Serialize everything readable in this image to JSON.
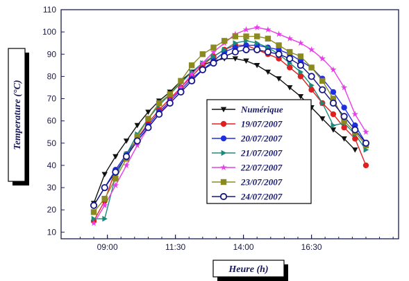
{
  "chart_data": {
    "type": "line",
    "xlabel": "Heure (h)",
    "ylabel": "Temperature (°C)",
    "xlim": [
      7.3,
      19.7
    ],
    "ylim": [
      7,
      110
    ],
    "yticks": [
      10,
      20,
      30,
      40,
      50,
      60,
      70,
      80,
      90,
      100,
      110
    ],
    "xticks": [
      {
        "value": 9.0,
        "label": "09:00"
      },
      {
        "value": 11.5,
        "label": "11:30"
      },
      {
        "value": 14.0,
        "label": "14:00"
      },
      {
        "value": 16.5,
        "label": "16:30"
      }
    ],
    "legend_position": "center-right",
    "grid": false,
    "series": [
      {
        "name": "Numérique",
        "color": "#111111",
        "marker": "triangle-down",
        "x": [
          8.5,
          8.9,
          9.3,
          9.7,
          10.1,
          10.5,
          10.9,
          11.3,
          11.7,
          12.1,
          12.5,
          12.9,
          13.3,
          13.7,
          14.1,
          14.5,
          14.9,
          15.3,
          15.7,
          16.1,
          16.5,
          16.9,
          17.3,
          17.7,
          18.1
        ],
        "y": [
          23,
          36,
          44,
          51,
          58,
          64,
          69,
          73,
          78,
          82,
          85,
          87,
          88,
          88,
          87,
          85,
          82,
          79,
          75,
          71,
          66,
          61,
          56,
          52,
          47
        ]
      },
      {
        "name": "19/07/2007",
        "color": "#e02020",
        "marker": "circle",
        "x": [
          8.5,
          8.9,
          9.3,
          9.7,
          10.1,
          10.5,
          10.9,
          11.3,
          11.7,
          12.1,
          12.5,
          12.9,
          13.3,
          13.7,
          14.1,
          14.5,
          14.9,
          15.3,
          15.7,
          16.1,
          16.5,
          16.9,
          17.3,
          17.7,
          18.1,
          18.5
        ],
        "y": [
          15,
          24,
          38,
          45,
          52,
          59,
          65,
          70,
          75,
          80,
          85,
          89,
          92,
          94,
          94,
          92,
          90,
          88,
          84,
          80,
          74,
          68,
          63,
          57,
          52,
          40
        ]
      },
      {
        "name": "20/07/2007",
        "color": "#1f2fe0",
        "marker": "circle",
        "x": [
          8.5,
          8.9,
          9.3,
          9.7,
          10.1,
          10.5,
          10.9,
          11.3,
          11.7,
          12.1,
          12.5,
          12.9,
          13.3,
          13.7,
          14.1,
          14.5,
          14.9,
          15.3,
          15.7,
          16.1,
          16.5,
          16.9,
          17.3,
          17.7,
          18.1,
          18.5
        ],
        "y": [
          22,
          30,
          38,
          45,
          52,
          58,
          64,
          69,
          74,
          79,
          83,
          87,
          91,
          93,
          94,
          94,
          93,
          92,
          90,
          87,
          84,
          79,
          73,
          66,
          58,
          50
        ]
      },
      {
        "name": "21/07/2007",
        "color": "#1a8a7a",
        "marker": "triangle-right",
        "x": [
          8.5,
          8.9,
          9.3,
          9.7,
          10.1,
          10.5,
          10.9,
          11.3,
          11.7,
          12.1,
          12.5,
          12.9,
          13.3,
          13.7,
          14.1,
          14.5,
          14.9,
          15.3,
          15.7,
          16.1,
          16.5,
          16.9,
          17.3,
          17.7,
          18.1,
          18.5
        ],
        "y": [
          16,
          16,
          35,
          45,
          54,
          61,
          67,
          72,
          77,
          82,
          86,
          89,
          92,
          95,
          96,
          95,
          93,
          90,
          86,
          82,
          76,
          68,
          58,
          59,
          54,
          47
        ]
      },
      {
        "name": "22/07/2007",
        "color": "#e83de8",
        "marker": "star",
        "x": [
          8.5,
          8.9,
          9.3,
          9.7,
          10.1,
          10.5,
          10.9,
          11.3,
          11.7,
          12.1,
          12.5,
          12.9,
          13.3,
          13.7,
          14.1,
          14.5,
          14.9,
          15.3,
          15.7,
          16.1,
          16.5,
          16.9,
          17.3,
          17.7,
          18.1,
          18.5
        ],
        "y": [
          14,
          22,
          31,
          40,
          49,
          57,
          63,
          69,
          75,
          81,
          86,
          91,
          95,
          99,
          101,
          102,
          101,
          99,
          97,
          95,
          92,
          88,
          83,
          75,
          63,
          55
        ]
      },
      {
        "name": "23/07/2007",
        "color": "#8a8a20",
        "marker": "square",
        "x": [
          8.5,
          8.9,
          9.3,
          9.7,
          10.1,
          10.5,
          10.9,
          11.3,
          11.7,
          12.1,
          12.5,
          12.9,
          13.3,
          13.7,
          14.1,
          14.5,
          14.9,
          15.3,
          15.7,
          16.1,
          16.5,
          16.9,
          17.3,
          17.7,
          18.1,
          18.5
        ],
        "y": [
          19,
          25,
          34,
          43,
          53,
          61,
          68,
          72,
          78,
          85,
          90,
          93,
          96,
          98,
          98,
          98,
          97,
          94,
          91,
          89,
          84,
          78,
          70,
          60,
          55,
          49
        ]
      },
      {
        "name": "24/07/2007",
        "color": "#151585",
        "marker": "circle-open",
        "x": [
          8.5,
          8.9,
          9.3,
          9.7,
          10.1,
          10.5,
          10.9,
          11.3,
          11.7,
          12.1,
          12.5,
          12.9,
          13.3,
          13.7,
          14.1,
          14.5,
          14.9,
          15.3,
          15.7,
          16.1,
          16.5,
          16.9,
          17.3,
          17.7,
          18.1,
          18.5
        ],
        "y": [
          22,
          30,
          37,
          44,
          51,
          57,
          63,
          68,
          73,
          78,
          83,
          86,
          89,
          91,
          92,
          92,
          91,
          90,
          88,
          85,
          80,
          74,
          68,
          62,
          56,
          50
        ]
      }
    ]
  }
}
